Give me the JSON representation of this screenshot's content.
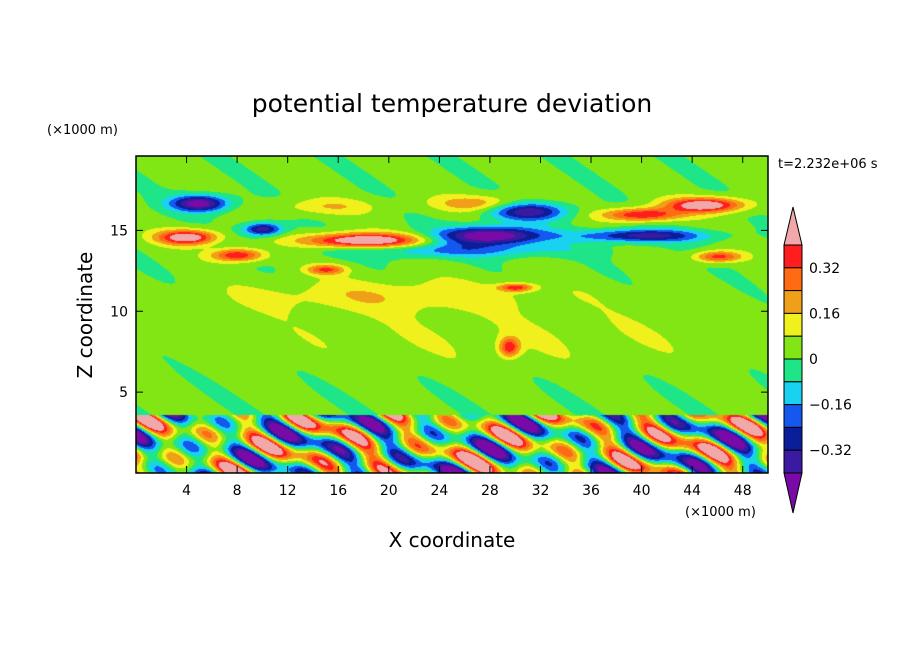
{
  "chart_data": {
    "type": "heatmap",
    "title": "potential temperature deviation",
    "xlabel": "X coordinate",
    "ylabel": "Z coordinate",
    "x_units": "(×1000 m)",
    "y_units": "(×1000 m)",
    "time_label": "t=2.232e+06 s",
    "xlim": [
      0,
      50
    ],
    "ylim": [
      0,
      19.6
    ],
    "x_ticks": [
      4,
      8,
      12,
      16,
      20,
      24,
      28,
      32,
      36,
      40,
      44,
      48
    ],
    "y_ticks": [
      5,
      10,
      15
    ],
    "colorbar": {
      "levels": [
        -0.48,
        -0.4,
        -0.32,
        -0.24,
        -0.16,
        -0.08,
        0,
        0.08,
        0.16,
        0.24,
        0.32,
        0.4,
        0.48
      ],
      "labels": [
        "-0.32",
        "-0.16",
        "0",
        "0.16",
        "0.32"
      ],
      "label_values": [
        -0.32,
        -0.16,
        0,
        0.16,
        0.32
      ],
      "colors": [
        "#7a0aa8",
        "#3a1aa0",
        "#0a1e9a",
        "#1458f0",
        "#18d2f0",
        "#1ee688",
        "#82e614",
        "#f0f01c",
        "#f0a018",
        "#ff6a14",
        "#ff1e1e",
        "#f0a8a8"
      ],
      "extend": "both"
    },
    "field": {
      "background": 0.02,
      "features": [
        {
          "x": 5,
          "z": 16.7,
          "sx": 2.2,
          "sz": 0.5,
          "amp": -0.5
        },
        {
          "x": 10,
          "z": 15.1,
          "sx": 1.5,
          "sz": 0.4,
          "amp": -0.42
        },
        {
          "x": 28,
          "z": 14.7,
          "sx": 4.0,
          "sz": 0.55,
          "amp": -0.55
        },
        {
          "x": 31,
          "z": 16.2,
          "sx": 3.0,
          "sz": 0.55,
          "amp": -0.4
        },
        {
          "x": 40,
          "z": 14.7,
          "sx": 5.0,
          "sz": 0.4,
          "amp": -0.38
        },
        {
          "x": 25,
          "z": 13.8,
          "sx": 9.0,
          "sz": 0.45,
          "amp": -0.2
        },
        {
          "x": 18,
          "z": 14.4,
          "sx": 4.5,
          "sz": 0.45,
          "amp": 0.55
        },
        {
          "x": 4,
          "z": 14.6,
          "sx": 2.3,
          "sz": 0.45,
          "amp": 0.5
        },
        {
          "x": 8,
          "z": 13.5,
          "sx": 2.0,
          "sz": 0.4,
          "amp": 0.4
        },
        {
          "x": 45,
          "z": 16.6,
          "sx": 3.0,
          "sz": 0.45,
          "amp": 0.5
        },
        {
          "x": 40,
          "z": 16.0,
          "sx": 3.0,
          "sz": 0.4,
          "amp": 0.4
        },
        {
          "x": 27,
          "z": 16.7,
          "sx": 3.5,
          "sz": 0.5,
          "amp": 0.2
        },
        {
          "x": 15,
          "z": 16.5,
          "sx": 4.0,
          "sz": 0.5,
          "amp": 0.13
        },
        {
          "x": 30,
          "z": 11.5,
          "sx": 1.3,
          "sz": 0.25,
          "amp": 0.35
        },
        {
          "x": 46,
          "z": 13.4,
          "sx": 1.8,
          "sz": 0.35,
          "amp": 0.35
        },
        {
          "x": 15,
          "z": 12.6,
          "sx": 1.5,
          "sz": 0.3,
          "amp": 0.3
        },
        {
          "x": 29.5,
          "z": 7.8,
          "sx": 0.8,
          "sz": 0.6,
          "amp": 0.35
        },
        {
          "x": 20,
          "z": 11.0,
          "sx": 12.0,
          "sz": 1.0,
          "amp": 0.12
        },
        {
          "x": 30,
          "z": 8.5,
          "sx": 25.0,
          "sz": 2.0,
          "amp": 0.05
        }
      ],
      "lower_layer": {
        "top": 3.6,
        "amplitude": 0.5,
        "x_wavenumbers": [
          0.95,
          1.6,
          0.55
        ],
        "z_wavenumbers": [
          2.2,
          1.4,
          3.1
        ]
      }
    }
  }
}
